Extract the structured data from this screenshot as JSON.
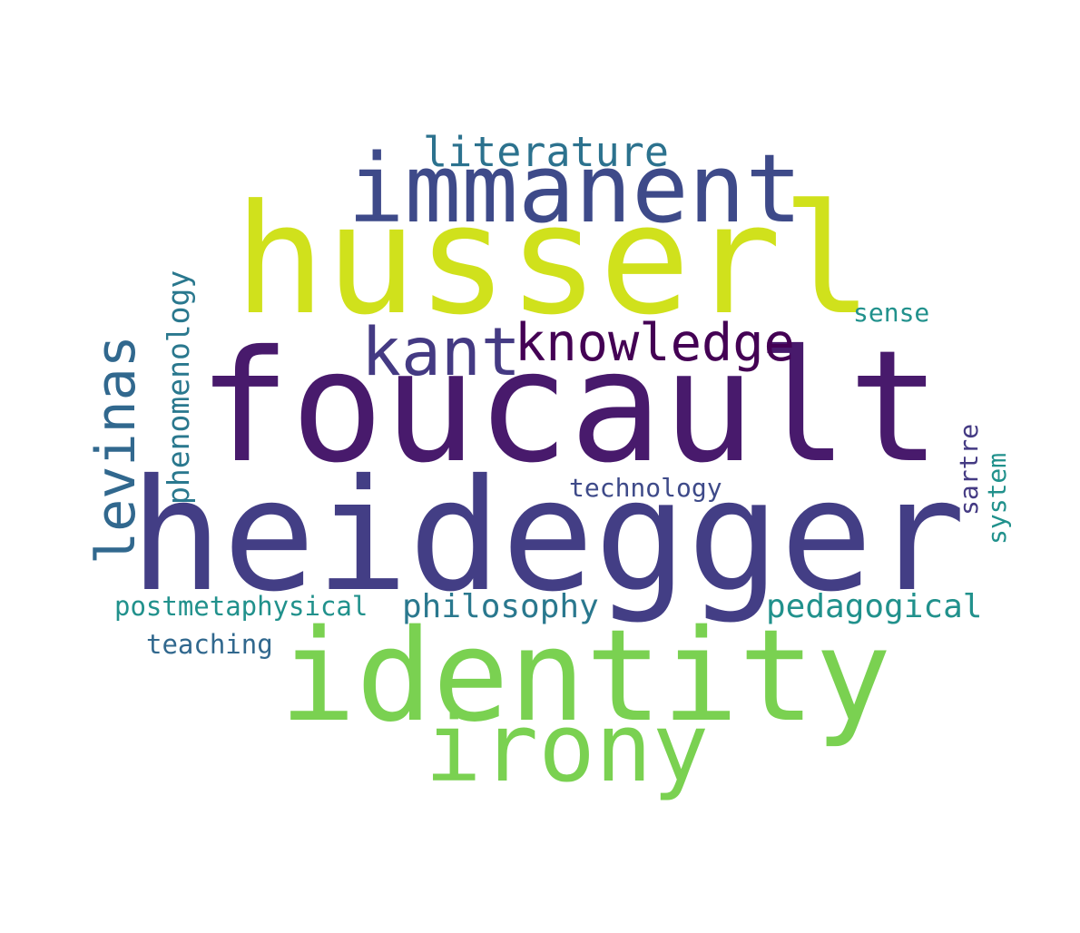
{
  "word_cloud": {
    "words": [
      {
        "text": "foucault",
        "color": "#481A6C"
      },
      {
        "text": "heidegger",
        "color": "#433E85"
      },
      {
        "text": "husserl",
        "color": "#D0E11C"
      },
      {
        "text": "identity",
        "color": "#7AD151"
      },
      {
        "text": "immanent",
        "color": "#3E4A89"
      },
      {
        "text": "irony",
        "color": "#7AD151"
      },
      {
        "text": "kant",
        "color": "#443A83"
      },
      {
        "text": "knowledge",
        "color": "#440154"
      },
      {
        "text": "levinas",
        "color": "#31688E"
      },
      {
        "text": "literature",
        "color": "#2C728E"
      },
      {
        "text": "phenomenology",
        "color": "#2A788E"
      },
      {
        "text": "philosophy",
        "color": "#2A788E"
      },
      {
        "text": "pedagogical",
        "color": "#21918C"
      },
      {
        "text": "postmetaphysical",
        "color": "#21918C"
      },
      {
        "text": "teaching",
        "color": "#31688E"
      },
      {
        "text": "technology",
        "color": "#3E4A89"
      },
      {
        "text": "sense",
        "color": "#21918C"
      },
      {
        "text": "sartre",
        "color": "#443A83"
      },
      {
        "text": "system",
        "color": "#21918C"
      }
    ]
  }
}
